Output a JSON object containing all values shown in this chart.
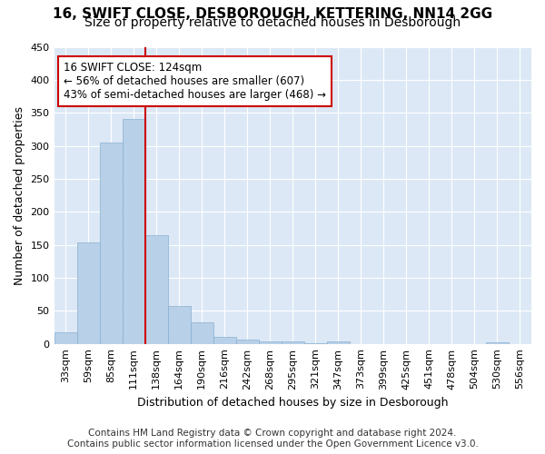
{
  "title1": "16, SWIFT CLOSE, DESBOROUGH, KETTERING, NN14 2GG",
  "title2": "Size of property relative to detached houses in Desborough",
  "xlabel": "Distribution of detached houses by size in Desborough",
  "ylabel": "Number of detached properties",
  "footer1": "Contains HM Land Registry data © Crown copyright and database right 2024.",
  "footer2": "Contains public sector information licensed under the Open Government Licence v3.0.",
  "bin_labels": [
    "33sqm",
    "59sqm",
    "85sqm",
    "111sqm",
    "138sqm",
    "164sqm",
    "190sqm",
    "216sqm",
    "242sqm",
    "268sqm",
    "295sqm",
    "321sqm",
    "347sqm",
    "373sqm",
    "399sqm",
    "425sqm",
    "451sqm",
    "478sqm",
    "504sqm",
    "530sqm",
    "556sqm"
  ],
  "bar_values": [
    17,
    154,
    305,
    340,
    165,
    57,
    33,
    10,
    7,
    4,
    3,
    1,
    4,
    0,
    0,
    0,
    0,
    0,
    0,
    2,
    0
  ],
  "bar_color": "#b8d0e8",
  "bar_edge_color": "#8ab0d0",
  "vline_x": 3.5,
  "vline_color": "#cc0000",
  "annotation_line1": "16 SWIFT CLOSE: 124sqm",
  "annotation_line2": "← 56% of detached houses are smaller (607)",
  "annotation_line3": "43% of semi-detached houses are larger (468) →",
  "annotation_box_color": "#ffffff",
  "annotation_box_edge": "#cc0000",
  "ylim": [
    0,
    450
  ],
  "yticks": [
    0,
    50,
    100,
    150,
    200,
    250,
    300,
    350,
    400,
    450
  ],
  "background_color": "#dce8f5",
  "grid_color": "#ffffff",
  "title1_fontsize": 11,
  "title2_fontsize": 10,
  "axis_label_fontsize": 9,
  "tick_fontsize": 8,
  "footer_fontsize": 7.5,
  "annotation_fontsize": 8.5
}
